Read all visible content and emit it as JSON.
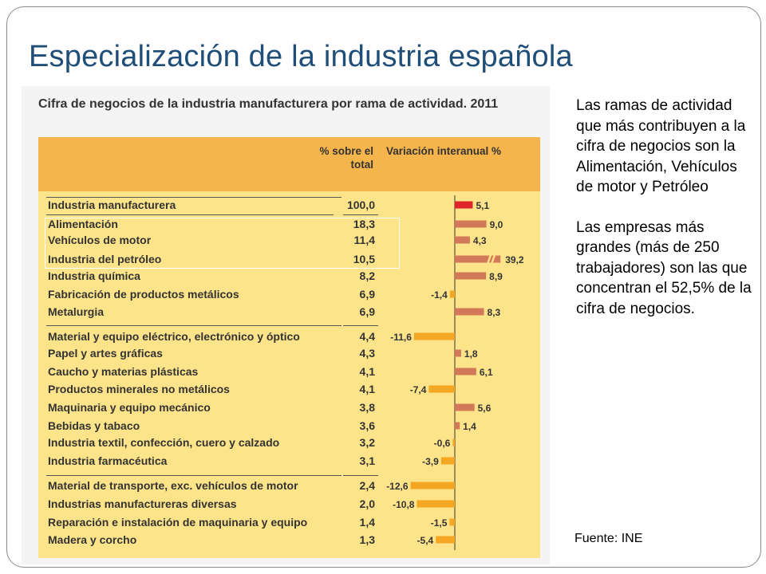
{
  "title": "Especialización de la industria española",
  "figure_title": "Cifra de negocios de la industria manufacturera por rama de actividad. 2011",
  "columns": {
    "pct_header": "% sobre el total",
    "var_header": "Variación interanual %"
  },
  "side_text": {
    "p1": "Las ramas de actividad que  más contribuyen a la cifra de negocios son la Alimentación, Vehículos de motor y Petróleo",
    "p2": "Las empresas más grandes (más de 250 trabajadores) son las que concentran el 52,5% de la cifra de negocios."
  },
  "source": "Fuente: INE",
  "colors": {
    "panel_bg": "#fde38a",
    "header_bg": "#f6b44c",
    "bar_total": "#e0262b",
    "bar_positive": "#d4785a",
    "bar_negative": "#f5a623",
    "title_color": "#1f4e79"
  },
  "chart_data": {
    "type": "table",
    "title": "Cifra de negocios de la industria manufacturera por rama de actividad. 2011",
    "columns": [
      "% sobre el total",
      "Variación interanual %"
    ],
    "rows": [
      {
        "label": "Industria manufacturera",
        "pct": "100,0",
        "var": 5.1,
        "var_label": "5,1"
      },
      {
        "label": "Alimentación",
        "pct": "18,3",
        "var": 9.0,
        "var_label": "9,0"
      },
      {
        "label": "Vehículos de motor",
        "pct": "11,4",
        "var": 4.3,
        "var_label": "4,3"
      },
      {
        "label": "Industria del petróleo",
        "pct": "10,5",
        "var": 39.2,
        "var_label": "39,2"
      },
      {
        "label": "Industria química",
        "pct": "8,2",
        "var": 8.9,
        "var_label": "8,9"
      },
      {
        "label": "Fabricación de productos metálicos",
        "pct": "6,9",
        "var": -1.4,
        "var_label": "-1,4"
      },
      {
        "label": "Metalurgia",
        "pct": "6,9",
        "var": 8.3,
        "var_label": "8,3"
      },
      {
        "label": "Material y equipo eléctrico, electrónico y óptico",
        "pct": "4,4",
        "var": -11.6,
        "var_label": "-11,6"
      },
      {
        "label": "Papel y artes gráficas",
        "pct": "4,3",
        "var": 1.8,
        "var_label": "1,8"
      },
      {
        "label": "Caucho y materias plásticas",
        "pct": "4,1",
        "var": 6.1,
        "var_label": "6,1"
      },
      {
        "label": "Productos minerales no metálicos",
        "pct": "4,1",
        "var": -7.4,
        "var_label": "-7,4"
      },
      {
        "label": "Maquinaria y equipo mecánico",
        "pct": "3,8",
        "var": 5.6,
        "var_label": "5,6"
      },
      {
        "label": "Bebidas y tabaco",
        "pct": "3,6",
        "var": 1.4,
        "var_label": "1,4"
      },
      {
        "label": "Industria textil, confección, cuero y calzado",
        "pct": "3,2",
        "var": -0.6,
        "var_label": "-0,6"
      },
      {
        "label": "Industria farmacéutica",
        "pct": "3,1",
        "var": -3.9,
        "var_label": "-3,9"
      },
      {
        "label": "Material de transporte, exc. vehículos de motor",
        "pct": "2,4",
        "var": -12.6,
        "var_label": "-12,6"
      },
      {
        "label": "Industrias manufactureras diversas",
        "pct": "2,0",
        "var": -10.8,
        "var_label": "-10,8"
      },
      {
        "label": "Reparación e instalación de maquinaria y equipo",
        "pct": "1,4",
        "var": -1.5,
        "var_label": "-1,5"
      },
      {
        "label": "Madera y corcho",
        "pct": "1,3",
        "var": -5.4,
        "var_label": "-5,4"
      }
    ]
  }
}
